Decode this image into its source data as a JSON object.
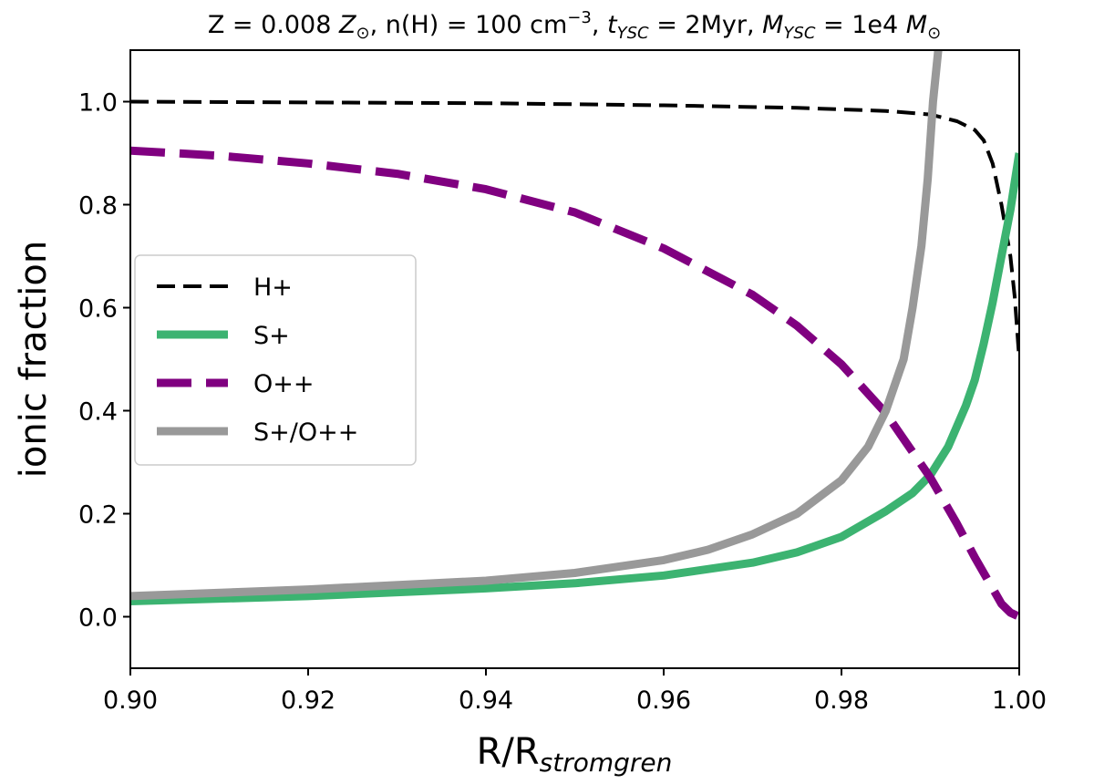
{
  "chart_data": {
    "type": "line",
    "title": "Z = 0.008 Z⊙, n(H) = 100 cm^-3, t_YSC = 2Myr, M_YSC = 1e4 M⊙",
    "title_parts": [
      {
        "t": "Z = 0.008 ",
        "s": "n"
      },
      {
        "t": "Z",
        "s": "i"
      },
      {
        "t": "⊙",
        "s": "sub"
      },
      {
        "t": ", n(H) = 100 cm",
        "s": "n"
      },
      {
        "t": "−3",
        "s": "sup"
      },
      {
        "t": ", ",
        "s": "n"
      },
      {
        "t": "t",
        "s": "i"
      },
      {
        "t": "YSC",
        "s": "isub"
      },
      {
        "t": " = 2Myr, ",
        "s": "n"
      },
      {
        "t": "M",
        "s": "i"
      },
      {
        "t": "YSC",
        "s": "isub"
      },
      {
        "t": " = 1e4 ",
        "s": "n"
      },
      {
        "t": "M",
        "s": "i"
      },
      {
        "t": "⊙",
        "s": "sub"
      }
    ],
    "xlabel": "R/R",
    "xlabel_sub": "stromgren",
    "ylabel": "ionic fraction",
    "xlim": [
      0.9,
      1.0
    ],
    "ylim": [
      -0.1,
      1.1
    ],
    "xticks": [
      "0.90",
      "0.92",
      "0.94",
      "0.96",
      "0.98",
      "1.00"
    ],
    "yticks": [
      "0.0",
      "0.2",
      "0.4",
      "0.6",
      "0.8",
      "1.0"
    ],
    "legend_position": "center-left",
    "series": [
      {
        "name": "H+",
        "color": "#000000",
        "dash": "dashed",
        "width": 4,
        "x": [
          0.9,
          0.94,
          0.96,
          0.975,
          0.985,
          0.99,
          0.993,
          0.995,
          0.996,
          0.997,
          0.998,
          0.999,
          0.9995,
          1.0
        ],
        "y": [
          1.0,
          0.997,
          0.993,
          0.988,
          0.982,
          0.975,
          0.962,
          0.945,
          0.925,
          0.88,
          0.8,
          0.7,
          0.62,
          0.5
        ]
      },
      {
        "name": "S+",
        "color": "#3cb371",
        "dash": "solid",
        "width": 9,
        "x": [
          0.9,
          0.92,
          0.94,
          0.95,
          0.96,
          0.97,
          0.975,
          0.98,
          0.985,
          0.988,
          0.99,
          0.992,
          0.994,
          0.995,
          0.996,
          0.997,
          0.998,
          0.999,
          1.0
        ],
        "y": [
          0.03,
          0.04,
          0.055,
          0.065,
          0.08,
          0.105,
          0.125,
          0.155,
          0.205,
          0.24,
          0.275,
          0.33,
          0.41,
          0.46,
          0.53,
          0.61,
          0.7,
          0.79,
          0.9
        ]
      },
      {
        "name": "O++",
        "color": "#800080",
        "dash": "dashed",
        "width": 9,
        "x": [
          0.9,
          0.91,
          0.92,
          0.93,
          0.94,
          0.95,
          0.96,
          0.97,
          0.975,
          0.98,
          0.985,
          0.99,
          0.993,
          0.995,
          0.997,
          0.998,
          0.999,
          1.0
        ],
        "y": [
          0.905,
          0.895,
          0.88,
          0.86,
          0.83,
          0.785,
          0.715,
          0.625,
          0.565,
          0.49,
          0.395,
          0.27,
          0.18,
          0.115,
          0.055,
          0.025,
          0.008,
          0.0
        ]
      },
      {
        "name": "S+/O++",
        "color": "#999999",
        "dash": "solid",
        "width": 9,
        "x": [
          0.9,
          0.92,
          0.94,
          0.95,
          0.96,
          0.965,
          0.97,
          0.975,
          0.98,
          0.983,
          0.985,
          0.987,
          0.988,
          0.989,
          0.9897,
          0.9903,
          0.991
        ],
        "y": [
          0.04,
          0.053,
          0.07,
          0.085,
          0.11,
          0.13,
          0.16,
          0.2,
          0.265,
          0.33,
          0.4,
          0.5,
          0.6,
          0.72,
          0.85,
          1.0,
          1.12
        ]
      }
    ]
  }
}
